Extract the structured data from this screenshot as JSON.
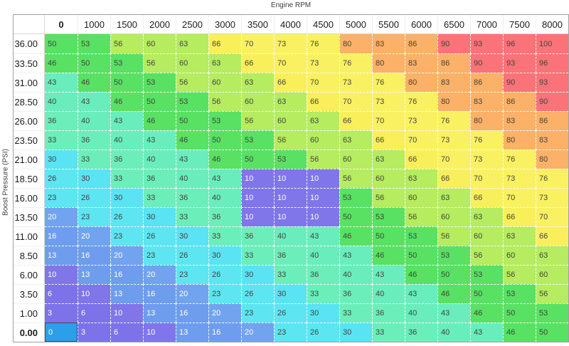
{
  "axis": {
    "x_title": "Engine RPM",
    "y_title": "Boost Pressure (PSI)"
  },
  "table": {
    "column_headers": [
      "0",
      "1000",
      "1500",
      "2000",
      "2500",
      "3000",
      "3500",
      "4000",
      "4500",
      "5000",
      "5500",
      "6000",
      "6500",
      "7000",
      "7500",
      "8000"
    ],
    "row_headers": [
      "36.00",
      "33.50",
      "31.00",
      "28.50",
      "26.00",
      "23.50",
      "21.00",
      "18.50",
      "16.00",
      "13.50",
      "11.00",
      "8.50",
      "6.00",
      "3.50",
      "1.00",
      "0.00"
    ],
    "values": [
      [
        50,
        53,
        56,
        60,
        63,
        66,
        70,
        73,
        76,
        80,
        83,
        86,
        90,
        93,
        96,
        100
      ],
      [
        46,
        50,
        53,
        56,
        60,
        63,
        66,
        70,
        73,
        76,
        80,
        83,
        86,
        90,
        93,
        96
      ],
      [
        43,
        46,
        50,
        53,
        56,
        60,
        63,
        66,
        70,
        73,
        76,
        80,
        83,
        86,
        90,
        93
      ],
      [
        40,
        43,
        46,
        50,
        53,
        56,
        60,
        63,
        66,
        70,
        73,
        76,
        80,
        83,
        86,
        90
      ],
      [
        36,
        40,
        43,
        46,
        50,
        53,
        56,
        60,
        63,
        66,
        70,
        73,
        76,
        80,
        83,
        86
      ],
      [
        33,
        36,
        40,
        43,
        46,
        50,
        53,
        56,
        60,
        63,
        66,
        70,
        73,
        76,
        80,
        83
      ],
      [
        30,
        33,
        36,
        40,
        43,
        46,
        50,
        53,
        56,
        60,
        63,
        66,
        70,
        73,
        76,
        80
      ],
      [
        26,
        30,
        33,
        36,
        40,
        43,
        10,
        10,
        10,
        56,
        60,
        63,
        66,
        70,
        73,
        76
      ],
      [
        23,
        26,
        30,
        33,
        36,
        40,
        10,
        10,
        10,
        53,
        56,
        60,
        63,
        66,
        70,
        73
      ],
      [
        20,
        23,
        26,
        30,
        33,
        36,
        10,
        10,
        10,
        50,
        53,
        56,
        60,
        63,
        66,
        70
      ],
      [
        16,
        20,
        23,
        26,
        30,
        33,
        36,
        40,
        43,
        46,
        50,
        53,
        56,
        60,
        63,
        66
      ],
      [
        13,
        16,
        20,
        23,
        26,
        30,
        33,
        36,
        40,
        43,
        46,
        50,
        53,
        56,
        60,
        63
      ],
      [
        10,
        13,
        16,
        20,
        23,
        26,
        30,
        33,
        36,
        40,
        43,
        46,
        50,
        53,
        56,
        60
      ],
      [
        6,
        10,
        13,
        16,
        20,
        23,
        26,
        30,
        33,
        36,
        40,
        43,
        46,
        50,
        53,
        56
      ],
      [
        3,
        6,
        10,
        13,
        16,
        20,
        23,
        26,
        30,
        33,
        36,
        40,
        43,
        46,
        50,
        53
      ],
      [
        0,
        3,
        6,
        10,
        13,
        16,
        20,
        23,
        26,
        30,
        33,
        36,
        40,
        43,
        46,
        50
      ]
    ],
    "selected": {
      "row_header": "0.00",
      "column_header": "0",
      "row_index": 15,
      "col_index": 0,
      "value": 0
    }
  },
  "heatmap_colors": {
    "0": "#2c9fe9",
    "3": "#7e72e8",
    "6": "#7e72e8",
    "10": "#8076e9",
    "13": "#6f9ded",
    "16": "#6f9ded",
    "20": "#72a3ee",
    "23": "#5de5f2",
    "26": "#5de5f2",
    "30": "#5ae3f2",
    "33": "#6ceebb",
    "36": "#6ceebb",
    "40": "#69edbc",
    "43": "#69edbc",
    "46": "#59e163",
    "50": "#59e163",
    "53": "#59e163",
    "56": "#b5ec60",
    "60": "#b5ec60",
    "63": "#b5ec60",
    "66": "#f9ef5b",
    "70": "#f9f162",
    "73": "#f9f162",
    "76": "#f9f162",
    "80": "#fbb167",
    "83": "#fbb167",
    "86": "#fbb167",
    "90": "#f97378",
    "93": "#f97378",
    "96": "#f97378",
    "100": "#f97378"
  },
  "white_text_values": [
    0,
    3,
    6,
    10,
    13,
    16,
    20
  ],
  "selected_cell_background": "#2c9fe9"
}
